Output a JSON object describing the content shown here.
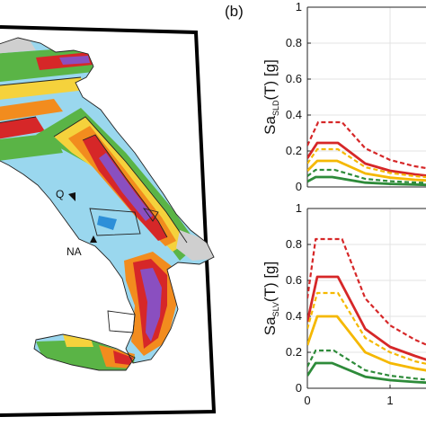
{
  "panel_label": "(b)",
  "map": {
    "city_labels": [
      "Q",
      "NA"
    ],
    "hazard_colors": [
      "#d62728",
      "#f28c1e",
      "#f5d23c",
      "#5ab446",
      "#9ad7ee",
      "#8a4fc0",
      "#1f3fa0",
      "#2d8fd8",
      "#cfcfcf"
    ]
  },
  "chart_data": [
    {
      "type": "line",
      "ylabel_main": "Sa",
      "ylabel_sub": "SLD",
      "ylabel_tail": "(T) [g]",
      "ylim": [
        0,
        1
      ],
      "yticks": [
        "0",
        "0.2",
        "0.4",
        "0.6",
        "0.8",
        "1"
      ],
      "xlim": [
        0,
        1.5
      ],
      "grid": true,
      "series": [
        {
          "color": "#d62728",
          "dashed": true,
          "points": [
            [
              0,
              0.23
            ],
            [
              0.13,
              0.36
            ],
            [
              0.42,
              0.36
            ],
            [
              0.7,
              0.215
            ],
            [
              1.0,
              0.15
            ],
            [
              1.3,
              0.115
            ],
            [
              1.5,
              0.1
            ]
          ]
        },
        {
          "color": "#d62728",
          "dashed": false,
          "points": [
            [
              0,
              0.16
            ],
            [
              0.12,
              0.245
            ],
            [
              0.37,
              0.245
            ],
            [
              0.7,
              0.13
            ],
            [
              1.0,
              0.09
            ],
            [
              1.3,
              0.07
            ],
            [
              1.5,
              0.06
            ]
          ]
        },
        {
          "color": "#f5b800",
          "dashed": true,
          "points": [
            [
              0,
              0.13
            ],
            [
              0.12,
              0.21
            ],
            [
              0.37,
              0.21
            ],
            [
              0.7,
              0.11
            ],
            [
              1.0,
              0.078
            ],
            [
              1.3,
              0.06
            ],
            [
              1.5,
              0.052
            ]
          ]
        },
        {
          "color": "#f5b800",
          "dashed": false,
          "points": [
            [
              0,
              0.09
            ],
            [
              0.12,
              0.145
            ],
            [
              0.36,
              0.145
            ],
            [
              0.7,
              0.075
            ],
            [
              1.0,
              0.052
            ],
            [
              1.3,
              0.04
            ],
            [
              1.5,
              0.035
            ]
          ]
        },
        {
          "color": "#2e8b3a",
          "dashed": true,
          "points": [
            [
              0,
              0.06
            ],
            [
              0.1,
              0.095
            ],
            [
              0.33,
              0.095
            ],
            [
              0.7,
              0.045
            ],
            [
              1.0,
              0.032
            ],
            [
              1.3,
              0.025
            ],
            [
              1.5,
              0.021
            ]
          ]
        },
        {
          "color": "#2e8b3a",
          "dashed": false,
          "points": [
            [
              0,
              0.03
            ],
            [
              0.1,
              0.055
            ],
            [
              0.3,
              0.055
            ],
            [
              0.7,
              0.024
            ],
            [
              1.0,
              0.017
            ],
            [
              1.3,
              0.013
            ],
            [
              1.5,
              0.011
            ]
          ]
        }
      ]
    },
    {
      "type": "line",
      "ylabel_main": "Sa",
      "ylabel_sub": "SLV",
      "ylabel_tail": "(T) [g]",
      "ylim": [
        0,
        1
      ],
      "yticks": [
        "0",
        "0.2",
        "0.4",
        "0.6",
        "0.8",
        "1"
      ],
      "xlim": [
        0,
        1.5
      ],
      "xticks": [
        "0",
        "1"
      ],
      "grid": true,
      "series": [
        {
          "color": "#d62728",
          "dashed": true,
          "points": [
            [
              0,
              0.5
            ],
            [
              0.1,
              0.83
            ],
            [
              0.42,
              0.83
            ],
            [
              0.7,
              0.5
            ],
            [
              1.0,
              0.35
            ],
            [
              1.3,
              0.27
            ],
            [
              1.5,
              0.23
            ]
          ]
        },
        {
          "color": "#d62728",
          "dashed": false,
          "points": [
            [
              0,
              0.37
            ],
            [
              0.12,
              0.62
            ],
            [
              0.37,
              0.62
            ],
            [
              0.7,
              0.33
            ],
            [
              1.0,
              0.23
            ],
            [
              1.3,
              0.18
            ],
            [
              1.5,
              0.15
            ]
          ]
        },
        {
          "color": "#f5b800",
          "dashed": true,
          "points": [
            [
              0,
              0.33
            ],
            [
              0.12,
              0.53
            ],
            [
              0.37,
              0.53
            ],
            [
              0.7,
              0.28
            ],
            [
              1.0,
              0.2
            ],
            [
              1.3,
              0.15
            ],
            [
              1.5,
              0.13
            ]
          ]
        },
        {
          "color": "#f5b800",
          "dashed": false,
          "points": [
            [
              0,
              0.24
            ],
            [
              0.12,
              0.4
            ],
            [
              0.36,
              0.4
            ],
            [
              0.7,
              0.2
            ],
            [
              1.0,
              0.14
            ],
            [
              1.3,
              0.11
            ],
            [
              1.5,
              0.095
            ]
          ]
        },
        {
          "color": "#2e8b3a",
          "dashed": true,
          "points": [
            [
              0,
              0.12
            ],
            [
              0.1,
              0.21
            ],
            [
              0.32,
              0.21
            ],
            [
              0.7,
              0.1
            ],
            [
              1.0,
              0.07
            ],
            [
              1.3,
              0.054
            ],
            [
              1.5,
              0.046
            ]
          ]
        },
        {
          "color": "#2e8b3a",
          "dashed": false,
          "points": [
            [
              0,
              0.07
            ],
            [
              0.1,
              0.14
            ],
            [
              0.3,
              0.14
            ],
            [
              0.7,
              0.064
            ],
            [
              1.0,
              0.045
            ],
            [
              1.3,
              0.035
            ],
            [
              1.5,
              0.03
            ]
          ]
        }
      ]
    }
  ]
}
